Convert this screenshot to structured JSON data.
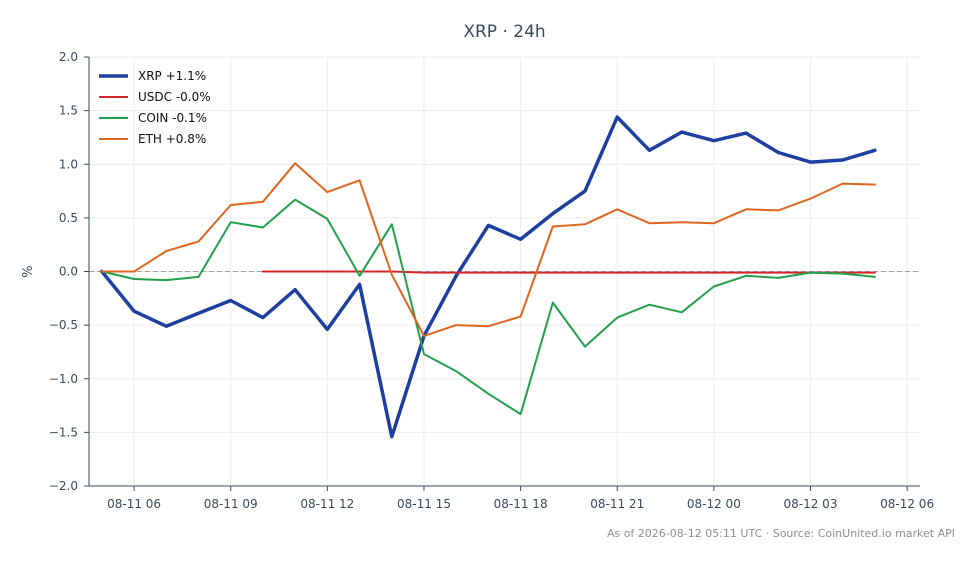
{
  "chart_data": {
    "type": "line",
    "title": "XRP · 24h",
    "xlabel": "",
    "ylabel": "%",
    "ylim": [
      -2.0,
      2.0
    ],
    "xlim": [
      "2026-08-11 04:36",
      "2026-08-12 06:24"
    ],
    "x_ticks": [
      "08-11 06",
      "08-11 09",
      "08-11 12",
      "08-11 15",
      "08-11 18",
      "08-11 21",
      "08-12 00",
      "08-12 03",
      "08-12 06"
    ],
    "y_ticks": [
      "2.0",
      "1.5",
      "1.0",
      "0.5",
      "0.0",
      "−0.5",
      "−1.0",
      "−1.5",
      "−2.0"
    ],
    "x": [
      "2026-08-11 05:00",
      "2026-08-11 06:00",
      "2026-08-11 07:00",
      "2026-08-11 08:00",
      "2026-08-11 09:00",
      "2026-08-11 10:00",
      "2026-08-11 11:00",
      "2026-08-11 12:00",
      "2026-08-11 13:00",
      "2026-08-11 14:00",
      "2026-08-11 15:00",
      "2026-08-11 16:00",
      "2026-08-11 17:00",
      "2026-08-11 18:00",
      "2026-08-11 19:00",
      "2026-08-11 20:00",
      "2026-08-11 21:00",
      "2026-08-11 22:00",
      "2026-08-11 23:00",
      "2026-08-12 00:00",
      "2026-08-12 01:00",
      "2026-08-12 02:00",
      "2026-08-12 03:00",
      "2026-08-12 04:00",
      "2026-08-12 05:00"
    ],
    "series": [
      {
        "name": "XRP +1.1%",
        "color": "#1f3fa0",
        "width": 3.5,
        "values": [
          0.0,
          -0.37,
          -0.51,
          -0.39,
          -0.27,
          -0.43,
          -0.17,
          -0.54,
          -0.12,
          -1.54,
          -0.6,
          -0.04,
          0.43,
          0.3,
          0.54,
          0.75,
          1.44,
          1.13,
          1.3,
          1.22,
          1.29,
          1.11,
          1.02,
          1.04,
          1.13
        ]
      },
      {
        "name": "USDC -0.0%",
        "color": "#d62728",
        "width": 2,
        "values": [
          null,
          null,
          null,
          null,
          null,
          0.0,
          0.0,
          0.0,
          0.0,
          0.0,
          -0.01,
          -0.01,
          -0.01,
          -0.01,
          -0.01,
          -0.01,
          -0.01,
          -0.01,
          -0.01,
          -0.01,
          -0.01,
          -0.01,
          -0.01,
          -0.01,
          -0.01
        ]
      },
      {
        "name": "COIN -0.1%",
        "color": "#22a04b",
        "width": 2,
        "values": [
          0.0,
          -0.07,
          -0.08,
          -0.05,
          0.46,
          0.41,
          0.67,
          0.49,
          -0.04,
          0.44,
          -0.77,
          -0.93,
          -1.14,
          -1.33,
          -0.29,
          -0.7,
          -0.43,
          -0.31,
          -0.38,
          -0.14,
          -0.04,
          -0.06,
          -0.01,
          -0.02,
          -0.05
        ]
      },
      {
        "name": "ETH +0.8%",
        "color": "#e0651f",
        "width": 2,
        "values": [
          0.0,
          0.0,
          0.19,
          0.28,
          0.62,
          0.65,
          1.01,
          0.74,
          0.85,
          -0.03,
          -0.6,
          -0.5,
          -0.51,
          -0.42,
          0.42,
          0.44,
          0.58,
          0.45,
          0.46,
          0.45,
          0.58,
          0.57,
          0.68,
          0.82,
          0.81
        ]
      }
    ],
    "zero_line": true,
    "grid": true,
    "legend_position": "top-left",
    "footer": "As of 2026-08-12 05:11 UTC · Source: CoinUnited.io market API"
  }
}
